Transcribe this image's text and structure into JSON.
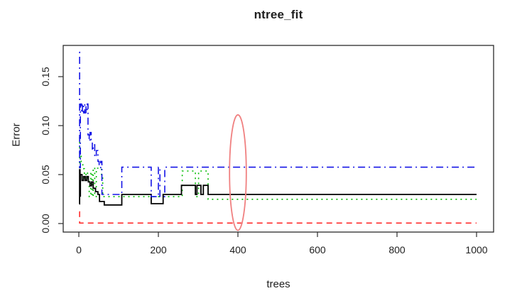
{
  "chart": {
    "title": "ntree_fit",
    "xlabel": "trees",
    "ylabel": "Error"
  },
  "chart_data": {
    "type": "line",
    "title": "ntree_fit",
    "xlabel": "trees",
    "ylabel": "Error",
    "xlim": [
      0,
      1000
    ],
    "ylim": [
      0,
      0.175
    ],
    "grid": false,
    "legend": "none",
    "x_ticks": {
      "values": [
        0,
        200,
        400,
        600,
        800,
        1000
      ],
      "labels": [
        "0",
        "200",
        "400",
        "600",
        "800",
        "1000"
      ]
    },
    "y_ticks": {
      "values": [
        0,
        0.05,
        0.1,
        0.15
      ],
      "labels": [
        "0.00",
        "0.05",
        "0.10",
        "0.15"
      ]
    },
    "axis_color": "#2b2b2b",
    "text_color": "#1f1f1f",
    "series": [
      {
        "name": "green-dotted",
        "color": "#00bb00",
        "linetype": "dotted",
        "step_points": [
          [
            1,
            0.088
          ],
          [
            2,
            0.055
          ],
          [
            3,
            0.07
          ],
          [
            6,
            0.062
          ],
          [
            10,
            0.056
          ],
          [
            14,
            0.0465
          ],
          [
            18,
            0.0525
          ],
          [
            22,
            0.0465
          ],
          [
            26,
            0.0275
          ],
          [
            30,
            0.0525
          ],
          [
            33,
            0.0275
          ],
          [
            36,
            0.057
          ],
          [
            40,
            0.0275
          ],
          [
            44,
            0.0565
          ],
          [
            57,
            0.0465
          ],
          [
            60,
            0.0275
          ],
          [
            260,
            0.0536
          ],
          [
            293,
            0.0275
          ],
          [
            301,
            0.0536
          ],
          [
            325,
            0.0248
          ],
          [
            1000,
            0.0248
          ]
        ]
      },
      {
        "name": "red-dashed",
        "color": "#ff2a2a",
        "linetype": "dashed",
        "step_points": [
          [
            1,
            0.012
          ],
          [
            2,
            0.0005
          ],
          [
            1000,
            0.0005
          ]
        ]
      },
      {
        "name": "black-solid-oob",
        "color": "#000000",
        "linetype": "solid",
        "step_points": [
          [
            1,
            0.02
          ],
          [
            2,
            0.055
          ],
          [
            3,
            0.028
          ],
          [
            4,
            0.05
          ],
          [
            8,
            0.044
          ],
          [
            12,
            0.048
          ],
          [
            16,
            0.044
          ],
          [
            20,
            0.048
          ],
          [
            24,
            0.0425
          ],
          [
            28,
            0.0385
          ],
          [
            32,
            0.0425
          ],
          [
            36,
            0.036
          ],
          [
            42,
            0.0325
          ],
          [
            48,
            0.0297
          ],
          [
            52,
            0.0225
          ],
          [
            64,
            0.019
          ],
          [
            108,
            0.0297
          ],
          [
            182,
            0.0203
          ],
          [
            212,
            0.0297
          ],
          [
            258,
            0.039
          ],
          [
            293,
            0.0297
          ],
          [
            297,
            0.039
          ],
          [
            307,
            0.0297
          ],
          [
            313,
            0.039
          ],
          [
            325,
            0.0297
          ],
          [
            1000,
            0.0297
          ]
        ]
      },
      {
        "name": "blue-dotdash",
        "color": "#1414e6",
        "linetype": "dotdash",
        "step_points": [
          [
            1,
            0.175
          ],
          [
            2,
            0.057
          ],
          [
            4,
            0.122
          ],
          [
            7,
            0.113
          ],
          [
            9,
            0.122
          ],
          [
            12,
            0.113
          ],
          [
            15,
            0.122
          ],
          [
            18,
            0.113
          ],
          [
            21,
            0.122
          ],
          [
            23,
            0.0905
          ],
          [
            26,
            0.084
          ],
          [
            28,
            0.093
          ],
          [
            31,
            0.084
          ],
          [
            34,
            0.0745
          ],
          [
            36,
            0.0805
          ],
          [
            40,
            0.068
          ],
          [
            44,
            0.0745
          ],
          [
            48,
            0.0635
          ],
          [
            51,
            0.057
          ],
          [
            55,
            0.0635
          ],
          [
            58,
            0.0297
          ],
          [
            108,
            0.0575
          ],
          [
            182,
            0.0275
          ],
          [
            200,
            0.0575
          ],
          [
            204,
            0.0275
          ],
          [
            216,
            0.0575
          ],
          [
            1000,
            0.0575
          ]
        ]
      }
    ],
    "annotations": [
      {
        "type": "ellipse",
        "x": 400,
        "y": 0.052,
        "rx": 21,
        "ry": 0.059,
        "color": "#f08080"
      }
    ]
  }
}
